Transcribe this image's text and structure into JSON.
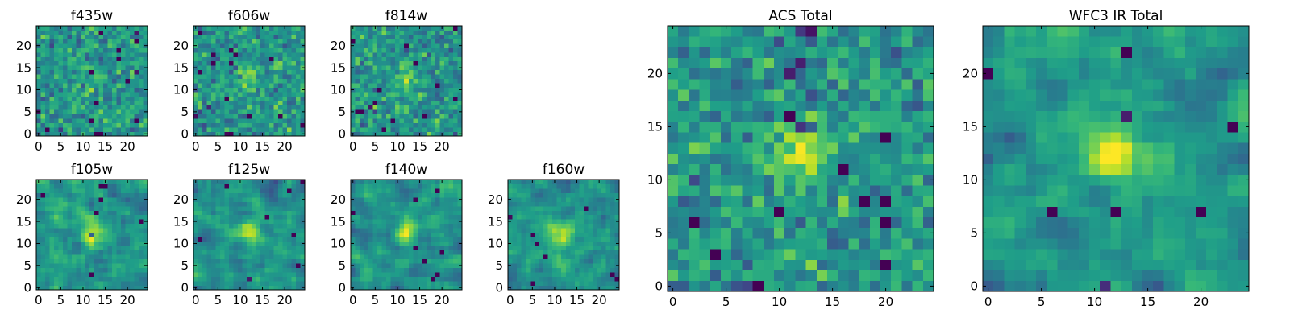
{
  "figure": {
    "description": "Grid of 9 heat-map image cutouts (25x25 pixels each) with a viridis colormap; left block 2x4 small panels per filter, right two large stacked totals."
  },
  "colormap": [
    "#440154",
    "#482878",
    "#3e4989",
    "#31688e",
    "#26828e",
    "#1f9e89",
    "#35b779",
    "#6ece58",
    "#b5de2b",
    "#fde725"
  ],
  "chart_data": [
    {
      "type": "heatmap",
      "title": "f435w",
      "xticks": [
        0,
        5,
        10,
        15,
        20
      ],
      "yticks": [
        0,
        5,
        10,
        15,
        20
      ],
      "xlim": [
        -0.5,
        24.5
      ],
      "ylim": [
        -0.5,
        24.5
      ],
      "grid": false,
      "pattern": "noisy",
      "seed": 11,
      "center_peak": 0.1
    },
    {
      "type": "heatmap",
      "title": "f606w",
      "xticks": [
        0,
        5,
        10,
        15,
        20
      ],
      "yticks": [
        0,
        5,
        10,
        15,
        20
      ],
      "xlim": [
        -0.5,
        24.5
      ],
      "ylim": [
        -0.5,
        24.5
      ],
      "grid": false,
      "pattern": "noisy",
      "seed": 23,
      "center_peak": 0.3
    },
    {
      "type": "heatmap",
      "title": "f814w",
      "xticks": [
        0,
        5,
        10,
        15,
        20
      ],
      "yticks": [
        0,
        5,
        10,
        15,
        20
      ],
      "xlim": [
        -0.5,
        24.5
      ],
      "ylim": [
        -0.5,
        24.5
      ],
      "grid": false,
      "pattern": "noisy",
      "seed": 37,
      "center_peak": 0.25
    },
    {
      "type": "heatmap",
      "title": "f105w",
      "xticks": [
        0,
        5,
        10,
        15,
        20
      ],
      "yticks": [
        0,
        5,
        10,
        15,
        20
      ],
      "xlim": [
        -0.5,
        24.5
      ],
      "ylim": [
        -0.5,
        24.5
      ],
      "grid": false,
      "pattern": "smooth",
      "seed": 41,
      "center_peak": 0.35
    },
    {
      "type": "heatmap",
      "title": "f125w",
      "xticks": [
        0,
        5,
        10,
        15,
        20
      ],
      "yticks": [
        0,
        5,
        10,
        15,
        20
      ],
      "xlim": [
        -0.5,
        24.5
      ],
      "ylim": [
        -0.5,
        24.5
      ],
      "grid": false,
      "pattern": "smooth",
      "seed": 53,
      "center_peak": 0.3
    },
    {
      "type": "heatmap",
      "title": "f140w",
      "xticks": [
        0,
        5,
        10,
        15,
        20
      ],
      "yticks": [
        0,
        5,
        10,
        15,
        20
      ],
      "xlim": [
        -0.5,
        24.5
      ],
      "ylim": [
        -0.5,
        24.5
      ],
      "grid": false,
      "pattern": "smooth",
      "seed": 67,
      "center_peak": 0.35
    },
    {
      "type": "heatmap",
      "title": "f160w",
      "xticks": [
        0,
        5,
        10,
        15,
        20
      ],
      "yticks": [
        0,
        5,
        10,
        15,
        20
      ],
      "xlim": [
        -0.5,
        24.5
      ],
      "ylim": [
        -0.5,
        24.5
      ],
      "grid": false,
      "pattern": "smooth",
      "seed": 79,
      "center_peak": 0.4
    },
    {
      "type": "heatmap",
      "title": "ACS Total",
      "xticks": [
        0,
        5,
        10,
        15,
        20
      ],
      "yticks": [
        0,
        5,
        10,
        15,
        20
      ],
      "xlim": [
        -0.5,
        24.5
      ],
      "ylim": [
        -0.5,
        24.5
      ],
      "grid": false,
      "pattern": "noisy",
      "seed": 97,
      "center_peak": 0.4
    },
    {
      "type": "heatmap",
      "title": "WFC3 IR Total",
      "xticks": [
        0,
        5,
        10,
        15,
        20
      ],
      "yticks": [
        0,
        5,
        10,
        15,
        20
      ],
      "xlim": [
        -0.5,
        24.5
      ],
      "ylim": [
        -0.5,
        24.5
      ],
      "grid": false,
      "pattern": "smooth",
      "seed": 113,
      "center_peak": 0.55
    }
  ]
}
